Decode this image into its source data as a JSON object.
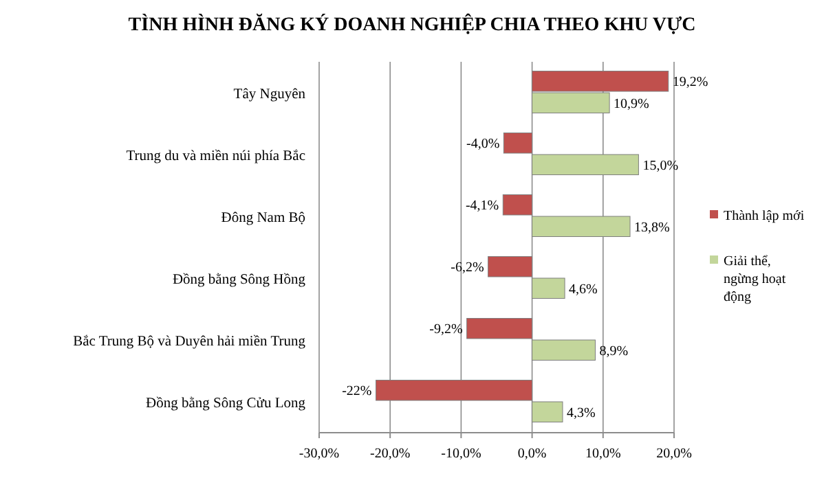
{
  "chart_data": {
    "type": "bar",
    "orientation": "horizontal",
    "title": "TÌNH HÌNH ĐĂNG KÝ DOANH NGHIỆP CHIA THEO KHU VỰC",
    "categories": [
      "Tây Nguyên",
      "Trung du và miền núi phía Bắc",
      "Đông Nam Bộ",
      "Đồng bằng Sông Hồng",
      "Bắc Trung Bộ và Duyên hải miền Trung",
      "Đồng bằng Sông Cửu Long"
    ],
    "series": [
      {
        "name": "Thành lập mới",
        "color": "#c0504d",
        "values": [
          19.2,
          -4.0,
          -4.1,
          -6.2,
          -9.2,
          -22
        ],
        "value_labels": [
          "19,2%",
          "-4,0%",
          "-4,1%",
          "-6,2%",
          "-9,2%",
          "-22%"
        ]
      },
      {
        "name": "Giải thể, ngừng hoạt động",
        "color": "#c3d69b",
        "values": [
          10.9,
          15.0,
          13.8,
          4.6,
          8.9,
          4.3
        ],
        "value_labels": [
          "10,9%",
          "15,0%",
          "13,8%",
          "4,6%",
          "8,9%",
          "4,3%"
        ]
      }
    ],
    "xlim": [
      -30,
      20
    ],
    "xticks": [
      {
        "value": -30,
        "label": "-30,0%"
      },
      {
        "value": -20,
        "label": "-20,0%"
      },
      {
        "value": -10,
        "label": "-10,0%"
      },
      {
        "value": 0,
        "label": "0,0%"
      },
      {
        "value": 10,
        "label": "10,0%"
      },
      {
        "value": 20,
        "label": "20,0%"
      }
    ],
    "grid": "x",
    "legend": "right"
  }
}
